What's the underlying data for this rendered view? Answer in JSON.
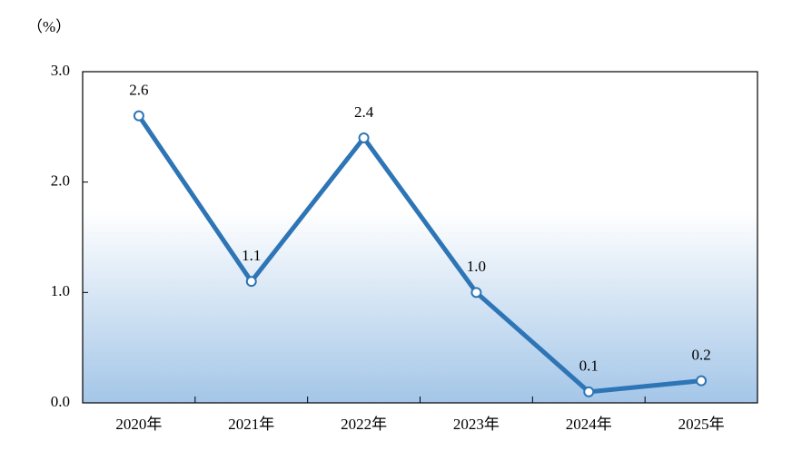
{
  "chart_data": {
    "type": "line",
    "y_axis_label": "（%）",
    "categories": [
      "2020年",
      "2021年",
      "2022年",
      "2023年",
      "2024年",
      "2025年"
    ],
    "values": [
      2.6,
      1.1,
      2.4,
      1.0,
      0.1,
      0.2
    ],
    "value_labels": [
      "2.6",
      "1.1",
      "2.4",
      "1.0",
      "0.1",
      "0.2"
    ],
    "color": "#2e75b6",
    "ylim": [
      0,
      3
    ],
    "yticks": [
      {
        "value": 0,
        "label": "0.0"
      },
      {
        "value": 1,
        "label": "1.0"
      },
      {
        "value": 2,
        "label": "2.0"
      },
      {
        "value": 3,
        "label": "3.0"
      }
    ]
  }
}
